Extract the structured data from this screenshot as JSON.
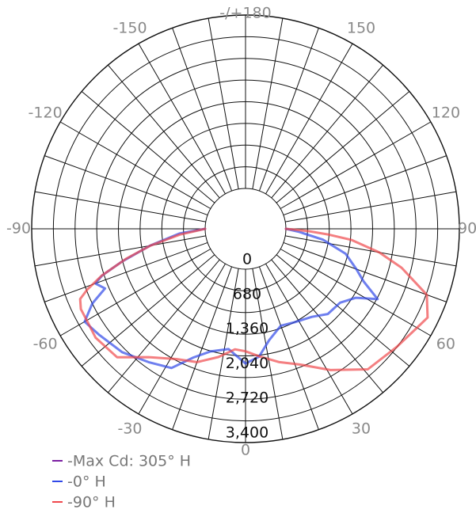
{
  "chart_data": {
    "type": "polar",
    "angle_labels": [
      {
        "text": "-/+180",
        "angle_deg": 180
      },
      {
        "text": "150",
        "angle_deg": 150
      },
      {
        "text": "120",
        "angle_deg": 120
      },
      {
        "text": "90",
        "angle_deg": 90
      },
      {
        "text": "60",
        "angle_deg": 60
      },
      {
        "text": "30",
        "angle_deg": 30
      },
      {
        "text": "0",
        "angle_deg": 0
      },
      {
        "text": "-30",
        "angle_deg": -30
      },
      {
        "text": "-60",
        "angle_deg": -60
      },
      {
        "text": "-90",
        "angle_deg": -90
      },
      {
        "text": "-120",
        "angle_deg": -120
      },
      {
        "text": "-150",
        "angle_deg": -150
      }
    ],
    "radial_ticks": [
      {
        "value": 0,
        "label": "0"
      },
      {
        "value": 680,
        "label": "680"
      },
      {
        "value": 1360,
        "label": "1,360"
      },
      {
        "value": 2040,
        "label": "2,040"
      },
      {
        "value": 2720,
        "label": "2,720"
      },
      {
        "value": 3400,
        "label": "3,400"
      }
    ],
    "rmax": 3400,
    "angle_step_deg": 10,
    "series": [
      {
        "name": "-Max Cd: 305° H",
        "color": "#7b1fa2",
        "points": []
      },
      {
        "name": "-0° H",
        "color": "#3048e8",
        "points": [
          {
            "angle": -90,
            "value": 0
          },
          {
            "angle": -86,
            "value": 500
          },
          {
            "angle": -80,
            "value": 1110
          },
          {
            "angle": -75,
            "value": 1730
          },
          {
            "angle": -72,
            "value": 2160
          },
          {
            "angle": -70,
            "value": 2340
          },
          {
            "angle": -67,
            "value": 2200
          },
          {
            "angle": -64,
            "value": 2550
          },
          {
            "angle": -60,
            "value": 2850
          },
          {
            "angle": -54,
            "value": 2750
          },
          {
            "angle": -45,
            "value": 2630
          },
          {
            "angle": -36,
            "value": 2440
          },
          {
            "angle": -28,
            "value": 2300
          },
          {
            "angle": -22,
            "value": 1930
          },
          {
            "angle": -16,
            "value": 1710
          },
          {
            "angle": -8,
            "value": 1590
          },
          {
            "angle": 0,
            "value": 1850
          },
          {
            "angle": 6,
            "value": 1730
          },
          {
            "angle": 12,
            "value": 1440
          },
          {
            "angle": 20,
            "value": 1230
          },
          {
            "angle": 28,
            "value": 1280
          },
          {
            "angle": 37,
            "value": 1370
          },
          {
            "angle": 44,
            "value": 1530
          },
          {
            "angle": 52,
            "value": 1560
          },
          {
            "angle": 58,
            "value": 1760
          },
          {
            "angle": 62,
            "value": 2140
          },
          {
            "angle": 66,
            "value": 1740
          },
          {
            "angle": 70,
            "value": 1520
          },
          {
            "angle": 76,
            "value": 1230
          },
          {
            "angle": 82,
            "value": 740
          },
          {
            "angle": 87,
            "value": 240
          },
          {
            "angle": 90,
            "value": 0
          }
        ]
      },
      {
        "name": "-90° H",
        "color": "#f0484c",
        "points": [
          {
            "angle": -90,
            "value": 0
          },
          {
            "angle": -85,
            "value": 500
          },
          {
            "angle": -80,
            "value": 1100
          },
          {
            "angle": -76,
            "value": 1610
          },
          {
            "angle": -72,
            "value": 2170
          },
          {
            "angle": -69,
            "value": 2530
          },
          {
            "angle": -67,
            "value": 2730
          },
          {
            "angle": -64,
            "value": 2800
          },
          {
            "angle": -60,
            "value": 2800
          },
          {
            "angle": -54,
            "value": 2840
          },
          {
            "angle": -45,
            "value": 2770
          },
          {
            "angle": -37,
            "value": 2360
          },
          {
            "angle": -28,
            "value": 2100
          },
          {
            "angle": -20,
            "value": 1990
          },
          {
            "angle": -12,
            "value": 1780
          },
          {
            "angle": -5,
            "value": 1580
          },
          {
            "angle": 0,
            "value": 1610
          },
          {
            "angle": 6,
            "value": 1720
          },
          {
            "angle": 14,
            "value": 1900
          },
          {
            "angle": 22,
            "value": 2080
          },
          {
            "angle": 31,
            "value": 2440
          },
          {
            "angle": 41,
            "value": 2860
          },
          {
            "angle": 52,
            "value": 2970
          },
          {
            "angle": 60,
            "value": 3090
          },
          {
            "angle": 64,
            "value": 3180
          },
          {
            "angle": 70,
            "value": 2990
          },
          {
            "angle": 76,
            "value": 2360
          },
          {
            "angle": 80,
            "value": 1870
          },
          {
            "angle": 84,
            "value": 1300
          },
          {
            "angle": 86,
            "value": 850
          },
          {
            "angle": 88,
            "value": 420
          },
          {
            "angle": 90,
            "value": 0
          }
        ]
      }
    ],
    "legend_position": "bottom-left"
  }
}
